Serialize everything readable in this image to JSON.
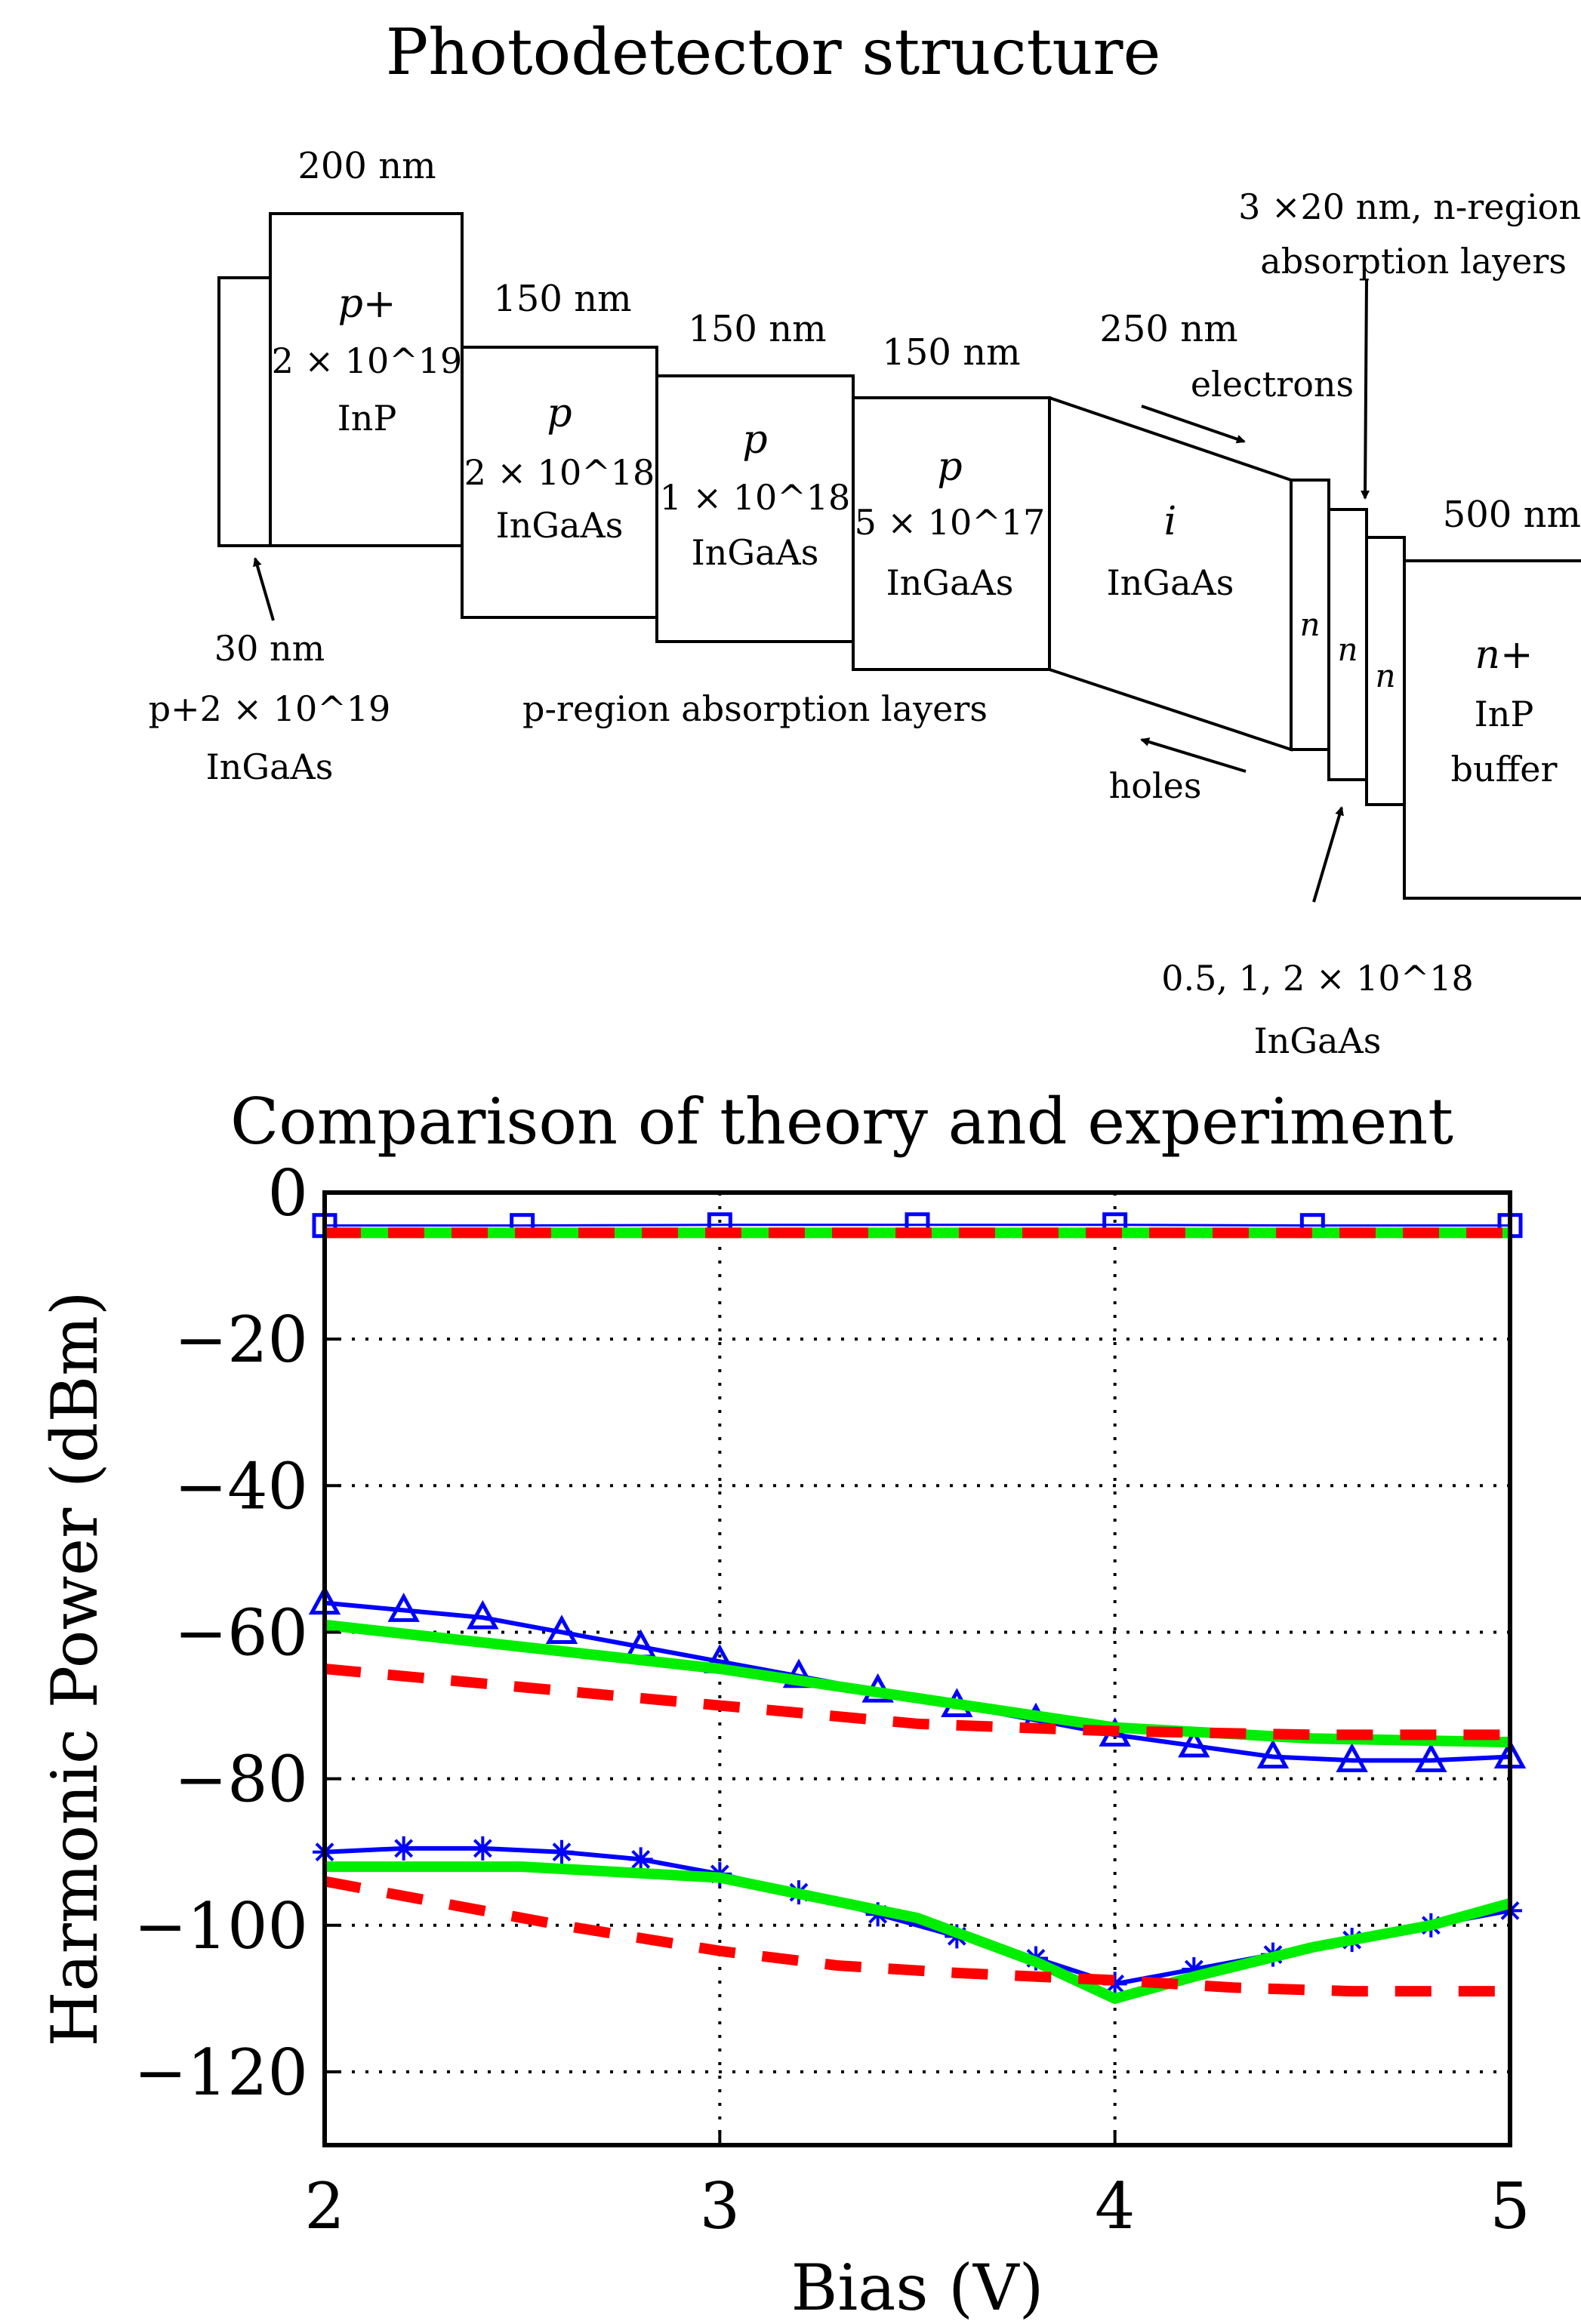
{
  "diagram": {
    "title": "Photodetector structure",
    "layers": [
      {
        "id": "p-cap",
        "lines": [
          "30 nm",
          "p+2 × 10^19",
          "InGaAs"
        ]
      },
      {
        "id": "p-plus-inp",
        "thickness": "200 nm",
        "lines": [
          "p+",
          "2 × 10^19",
          "InP"
        ]
      },
      {
        "id": "p1",
        "thickness": "150 nm",
        "lines": [
          "p",
          "2 × 10^18",
          "InGaAs"
        ]
      },
      {
        "id": "p2",
        "thickness": "150 nm",
        "lines": [
          "p",
          "1 × 10^18",
          "InGaAs"
        ]
      },
      {
        "id": "p3",
        "thickness": "150 nm",
        "lines": [
          "p",
          "5 × 10^17",
          "InGaAs"
        ]
      },
      {
        "id": "intrinsic",
        "thickness": "250 nm",
        "lines": [
          "i",
          "InGaAs"
        ]
      },
      {
        "id": "n1",
        "lines": [
          "n"
        ]
      },
      {
        "id": "n2",
        "lines": [
          "n"
        ]
      },
      {
        "id": "n3",
        "lines": [
          "n"
        ]
      },
      {
        "id": "n-plus-buffer",
        "thickness": "500 nm",
        "lines": [
          "n+",
          "InP",
          "buffer"
        ]
      }
    ],
    "labels": {
      "p_region": "p-region absorption layers",
      "n_region_line1": "3 ×20 nm, n-region",
      "n_region_line2": "absorption layers",
      "electrons": "electrons",
      "holes": "holes",
      "n_doping_line1": "0.5, 1, 2 × 10^18",
      "n_doping_line2": "InGaAs"
    }
  },
  "chart": {
    "title": "Comparison of theory and experiment",
    "xlabel": "Bias (V)",
    "ylabel": "Harmonic Power (dBm)"
  },
  "colors": {
    "experiment": "#0000ff",
    "theory_green": "#00ee00",
    "theory_red": "#ff0000"
  },
  "chart_data": {
    "type": "line",
    "xlim": [
      2,
      5
    ],
    "ylim": [
      -130,
      0
    ],
    "xticks": [
      2,
      3,
      4,
      5
    ],
    "yticks": [
      0,
      -20,
      -40,
      -60,
      -80,
      -100,
      -120
    ],
    "grid": true,
    "series": [
      {
        "group": "fundamental",
        "style": "blue-squares",
        "x": [
          2.0,
          2.5,
          3.0,
          3.5,
          4.0,
          4.5,
          5.0
        ],
        "y": [
          -4.5,
          -4.5,
          -4.4,
          -4.4,
          -4.4,
          -4.5,
          -4.5
        ]
      },
      {
        "group": "fundamental",
        "style": "green-solid",
        "x": [
          2.0,
          2.5,
          3.0,
          3.5,
          4.0,
          4.5,
          5.0
        ],
        "y": [
          -5.5,
          -5.5,
          -5.5,
          -5.5,
          -5.5,
          -5.5,
          -5.5
        ]
      },
      {
        "group": "fundamental",
        "style": "red-dashed",
        "x": [
          2.0,
          2.5,
          3.0,
          3.5,
          4.0,
          4.5,
          5.0
        ],
        "y": [
          -5.5,
          -5.5,
          -5.5,
          -5.5,
          -5.5,
          -5.5,
          -5.5
        ]
      },
      {
        "group": "second-harmonic",
        "style": "blue-triangles",
        "x": [
          2.0,
          2.2,
          2.4,
          2.6,
          2.8,
          3.0,
          3.2,
          3.4,
          3.6,
          3.8,
          4.0,
          4.2,
          4.4,
          4.6,
          4.8,
          5.0
        ],
        "y": [
          -56,
          -57,
          -58,
          -60,
          -62,
          -64,
          -66,
          -68,
          -70,
          -72,
          -74,
          -75.5,
          -77,
          -77.5,
          -77.5,
          -77
        ]
      },
      {
        "group": "second-harmonic",
        "style": "green-solid",
        "x": [
          2.0,
          2.5,
          3.0,
          3.5,
          4.0,
          4.5,
          5.0
        ],
        "y": [
          -59,
          -62,
          -65,
          -69,
          -73,
          -74.5,
          -75
        ]
      },
      {
        "group": "second-harmonic",
        "style": "red-dashed",
        "x": [
          2.0,
          2.5,
          3.0,
          3.5,
          4.0,
          4.5,
          5.0
        ],
        "y": [
          -65,
          -67.5,
          -70,
          -72.5,
          -73.5,
          -74,
          -74
        ]
      },
      {
        "group": "third-harmonic",
        "style": "blue-stars",
        "x": [
          2.0,
          2.2,
          2.4,
          2.6,
          2.8,
          3.0,
          3.2,
          3.4,
          3.6,
          3.8,
          4.0,
          4.2,
          4.4,
          4.6,
          4.8,
          5.0
        ],
        "y": [
          -90,
          -89.5,
          -89.5,
          -90,
          -91,
          -93,
          -95.5,
          -98.5,
          -101.5,
          -104.5,
          -108,
          -106,
          -104,
          -102,
          -100,
          -98
        ]
      },
      {
        "group": "third-harmonic",
        "style": "green-solid",
        "x": [
          2.0,
          2.5,
          3.0,
          3.5,
          3.8,
          4.0,
          4.2,
          4.5,
          4.8,
          5.0
        ],
        "y": [
          -92,
          -92,
          -93.5,
          -99,
          -105,
          -110,
          -107,
          -103,
          -100,
          -97
        ]
      },
      {
        "group": "third-harmonic",
        "style": "red-dashed",
        "x": [
          2.0,
          2.3,
          2.6,
          3.0,
          3.3,
          3.6,
          4.0,
          4.3,
          4.6,
          5.0
        ],
        "y": [
          -94,
          -97,
          -100,
          -103.5,
          -105.5,
          -106.5,
          -107.5,
          -108.5,
          -109,
          -109
        ]
      }
    ]
  }
}
